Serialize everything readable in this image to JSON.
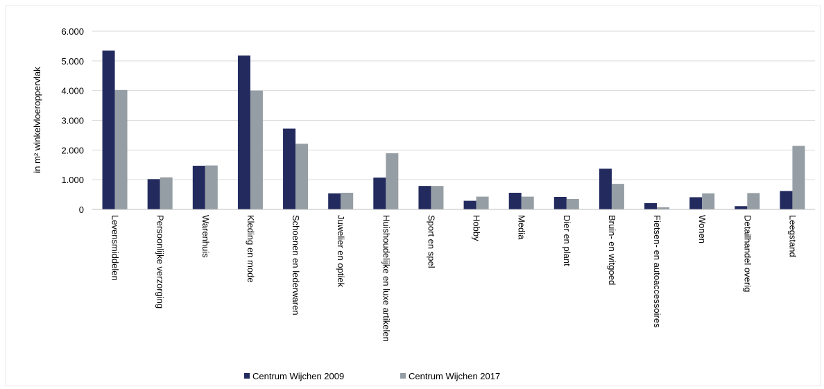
{
  "chart_data": {
    "type": "bar",
    "title": "",
    "xlabel": "",
    "ylabel": "in m² winkelvloeroppervlak",
    "ylim": [
      0,
      6000
    ],
    "yticks": [
      0,
      1000,
      2000,
      3000,
      4000,
      5000,
      6000
    ],
    "ytick_labels": [
      "0",
      "1.000",
      "2.000",
      "3.000",
      "4.000",
      "5.000",
      "6.000"
    ],
    "grid": true,
    "legend_position": "bottom",
    "categories": [
      "Levensmiddelen",
      "Persoonlijke verzorging",
      "Warenhuis",
      "Kleding en mode",
      "Schoenen en lederwaren",
      "Juwelier en optiek",
      "Huishoudelijke en luxe artikelen",
      "Sport en spel",
      "Hobby",
      "Media",
      "Dier en plant",
      "Bruin- en witgoed",
      "Fietsen- en autoaccessoires",
      "Wonen",
      "Detailhandel overig",
      "Leegstand"
    ],
    "series": [
      {
        "name": "Centrum Wijchen 2009",
        "color": "#222a5e",
        "values": [
          5350,
          1020,
          1470,
          5180,
          2720,
          540,
          1070,
          790,
          290,
          560,
          420,
          1370,
          210,
          410,
          110,
          620
        ]
      },
      {
        "name": "Centrum Wijchen 2017",
        "color": "#959ea4",
        "values": [
          4020,
          1080,
          1480,
          4000,
          2210,
          560,
          1890,
          790,
          430,
          430,
          350,
          860,
          70,
          540,
          550,
          2140
        ]
      }
    ]
  }
}
